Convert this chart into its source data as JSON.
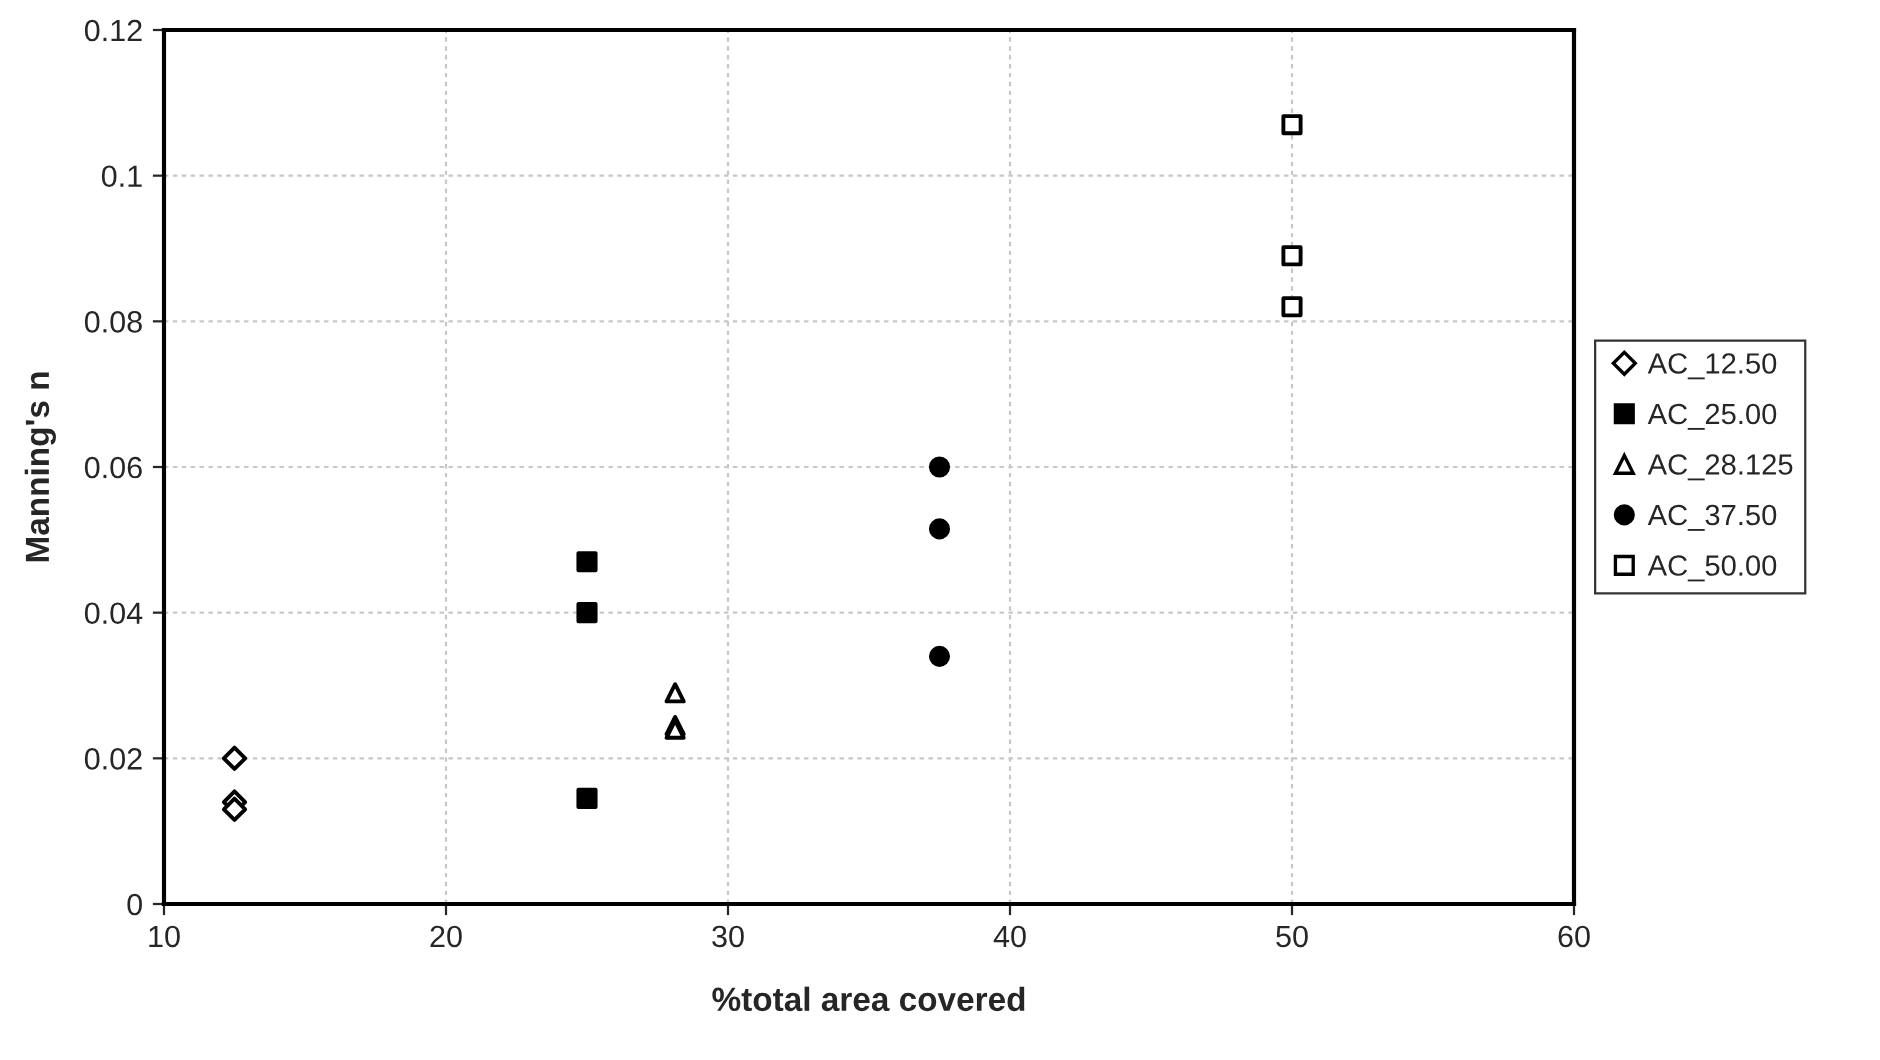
{
  "chart_data": {
    "type": "scatter",
    "xlabel": "%total area covered",
    "ylabel": "Manning's n",
    "xlim": [
      10,
      60
    ],
    "xticks": [
      10,
      20,
      30,
      40,
      50,
      60
    ],
    "ylim": [
      0,
      0.12
    ],
    "yticks": [
      0,
      0.02,
      0.04,
      0.06,
      0.08,
      0.1,
      0.12
    ],
    "grid": true,
    "legend": "right",
    "series": [
      {
        "name": "AC_12.50",
        "color": "#ffffff",
        "marker": "diamond",
        "x": [
          12.5,
          12.5,
          12.5
        ],
        "values": [
          0.02,
          0.014,
          0.013
        ]
      },
      {
        "name": "AC_25.00",
        "color": "#000000",
        "marker": "square",
        "x": [
          25,
          25,
          25
        ],
        "values": [
          0.047,
          0.04,
          0.0145
        ]
      },
      {
        "name": "AC_28.125",
        "color": "#ffffff",
        "marker": "triangle",
        "x": [
          28.125,
          28.125,
          28.125
        ],
        "values": [
          0.029,
          0.0245,
          0.024
        ]
      },
      {
        "name": "AC_37.50",
        "color": "#000000",
        "marker": "circle",
        "x": [
          37.5,
          37.5,
          37.5
        ],
        "values": [
          0.06,
          0.0515,
          0.034
        ]
      },
      {
        "name": "AC_50.00",
        "color": "#ffffff",
        "marker": "square",
        "x": [
          50,
          50,
          50
        ],
        "values": [
          0.107,
          0.089,
          0.082
        ]
      }
    ]
  }
}
